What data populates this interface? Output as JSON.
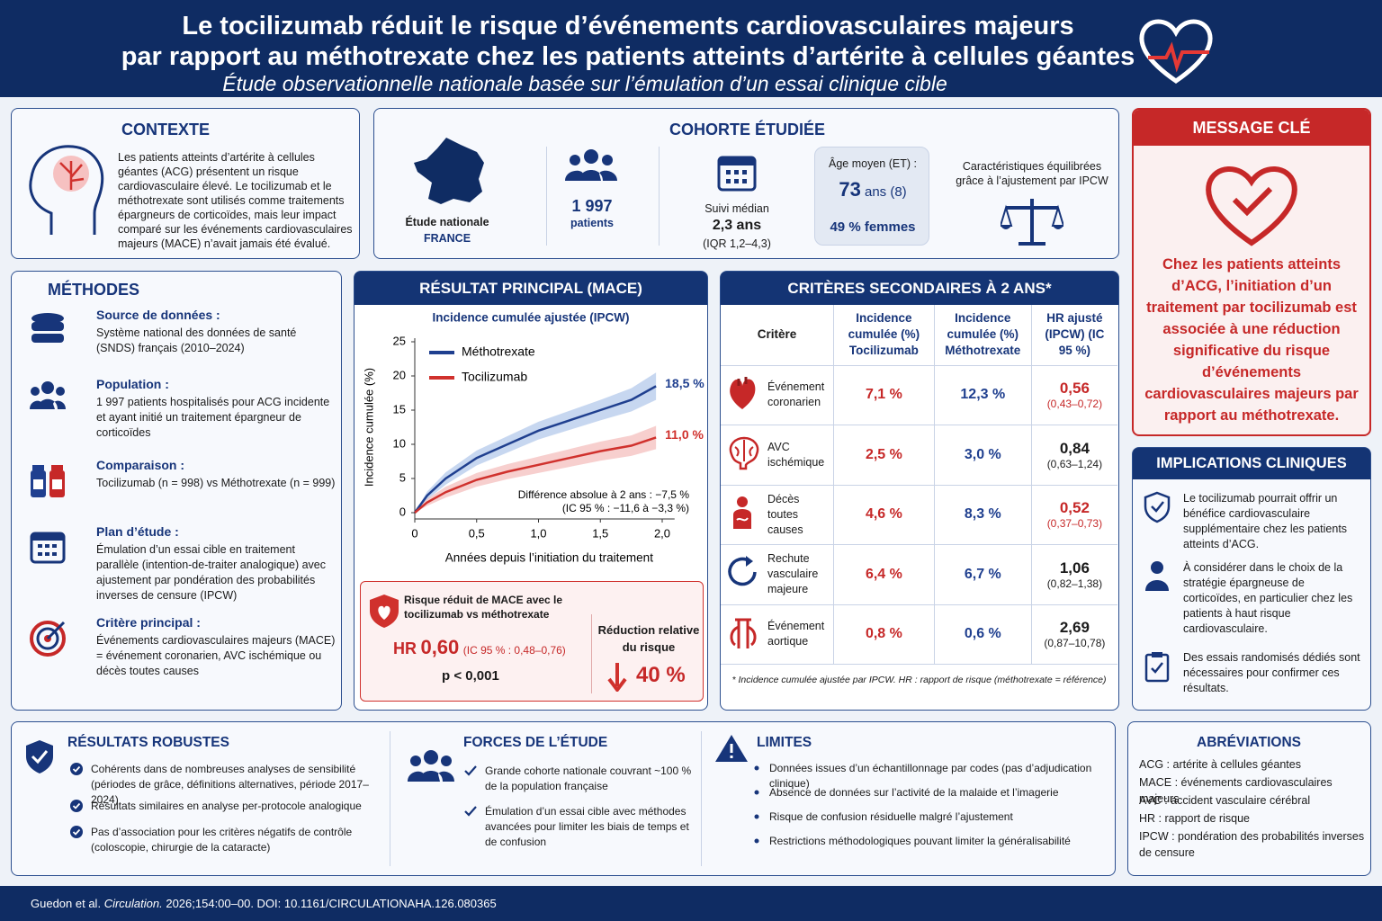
{
  "header": {
    "title_line1": "Le tocilizumab réduit le risque d’événements cardiovasculaires majeurs",
    "title_line2": "par rapport au méthotrexate chez les patients atteints d’artérite à cellules géantes",
    "subtitle": "Étude observationnelle nationale basée sur l’émulation d’un essai clinique cible"
  },
  "context": {
    "title": "CONTEXTE",
    "text": "Les patients atteints d’artérite à cellules géantes (ACG) présentent un risque cardiovasculaire élevé. Le tocilizumab et le méthotrexate sont utilisés comme traitements épargneurs de corticoïdes, mais leur impact comparé sur les événements cardiovasculaires majeurs (MACE) n’avait jamais été évalué."
  },
  "cohort": {
    "title": "COHORTE ÉTUDIÉE",
    "study": "Étude nationale",
    "country": "FRANCE",
    "n": "1 997",
    "n_label": "patients",
    "followup_label": "Suivi médian",
    "followup": "2,3 ans",
    "followup_iqr": "(IQR 1,2–4,3)",
    "age_label": "Âge moyen (ET) :",
    "age": "73",
    "age_unit": "ans (8)",
    "women": "49 % femmes",
    "balance": "Caractéristiques équilibrées grâce à l’ajustement par IPCW"
  },
  "key_message": {
    "title": "MESSAGE CLÉ",
    "text": "Chez les patients atteints d’ACG, l’initiation d’un traitement par tocilizumab est associée à une réduction significative du risque d’événements cardiovasculaires majeurs par rapport au méthotrexate."
  },
  "methods": {
    "title": "MÉTHODES",
    "items": [
      {
        "label": "Source de données :",
        "text": "Système national des données de santé (SNDS) français (2010–2024)"
      },
      {
        "label": "Population :",
        "text": "1 997 patients hospitalisés pour ACG incidente et ayant initié un traitement épargneur de corticoïdes"
      },
      {
        "label": "Comparaison :",
        "text": "Tocilizumab (n = 998) vs Méthotrexate (n = 999)"
      },
      {
        "label": "Plan d’étude :",
        "text": "Émulation d’un essai cible en traitement parallèle (intention-de-traiter analogique) avec ajustement par pondération des probabilités inverses de censure (IPCW)"
      },
      {
        "label": "Critère principal :",
        "text": "Événements cardiovasculaires majeurs (MACE) = événement coronarien, AVC ischémique ou décès toutes causes"
      }
    ]
  },
  "main_result": {
    "title": "RÉSULTAT PRINCIPAL (MACE)",
    "box_text": "Risque réduit de MACE avec le tocilizumab vs méthotrexate",
    "hr_label": "HR",
    "hr": "0,60",
    "ci": "(IC 95 % : 0,48–0,76)",
    "p": "p < 0,001",
    "rrr_label": "Réduction relative du risque",
    "rrr": "40 %"
  },
  "chart_data": {
    "type": "line",
    "title": "Incidence cumulée ajustée (IPCW)",
    "x_label": "Années depuis l’initiation du traitement",
    "y_label": "Incidence cumulée (%)",
    "x": [
      0,
      0.1,
      0.25,
      0.5,
      0.75,
      1.0,
      1.25,
      1.5,
      1.75,
      1.95
    ],
    "xlim": [
      0,
      2.1
    ],
    "ylim": [
      0,
      25
    ],
    "xticks": [
      0,
      {
        "value": 0.5,
        "label": "0,5"
      },
      {
        "value": 1,
        "label": "1,0"
      },
      {
        "value": 1.5,
        "label": "1,5"
      },
      {
        "value": 2,
        "label": "2,0"
      }
    ],
    "yticks": [
      0,
      5,
      10,
      15,
      20,
      25
    ],
    "legend": "upper left",
    "series": [
      {
        "name": "Méthotrexate",
        "color": "#1f3f8f",
        "band_color": "#a9c1e8",
        "values": [
          0,
          2.5,
          5,
          8,
          10,
          12,
          13.5,
          15,
          16.5,
          18.5
        ],
        "lower": [
          0,
          1.9,
          4.1,
          6.9,
          8.8,
          10.7,
          12.1,
          13.5,
          14.8,
          16.5
        ],
        "upper": [
          0,
          3.1,
          5.9,
          9.1,
          11.2,
          13.3,
          14.9,
          16.5,
          18.2,
          20.5
        ],
        "value_labels": [
          null,
          null,
          null,
          null,
          null,
          null,
          null,
          null,
          null,
          "18,5 %"
        ]
      },
      {
        "name": "Tocilizumab",
        "color": "#d0312d",
        "band_color": "#f3b6b4",
        "values": [
          0,
          1.5,
          3,
          4.8,
          6,
          7,
          8,
          9,
          9.8,
          11.0
        ],
        "lower": [
          0,
          1.0,
          2.2,
          3.8,
          4.9,
          5.8,
          6.7,
          7.6,
          8.3,
          9.3
        ],
        "upper": [
          0,
          2.0,
          3.8,
          5.8,
          7.1,
          8.2,
          9.3,
          10.4,
          11.3,
          12.7
        ],
        "value_labels": [
          null,
          null,
          null,
          null,
          null,
          null,
          null,
          null,
          null,
          "11,0 %"
        ]
      }
    ],
    "annotations": [
      "Différence absolue à 2 ans : −7,5 %",
      "(IC 95 % : −11,6 à −3,3 %)"
    ]
  },
  "secondary": {
    "title": "CRITÈRES SECONDAIRES À 2 ANS*",
    "headers": [
      "Critère",
      "Incidence cumulée (%) Tocilizumab",
      "Incidence cumulée (%) Méthotrexate",
      "HR ajusté (IPCW) (IC 95 %)"
    ],
    "rows": [
      {
        "name": "Événement coronarien",
        "toci": "7,1 %",
        "mtx": "12,3 %",
        "hr": "0,56",
        "ci": "(0,43–0,72)",
        "color": "#c62828"
      },
      {
        "name": "AVC ischémique",
        "toci": "2,5 %",
        "mtx": "3,0 %",
        "hr": "0,84",
        "ci": "(0,63–1,24)",
        "color": "#1a1a1a"
      },
      {
        "name": "Décès toutes causes",
        "toci": "4,6 %",
        "mtx": "8,3 %",
        "hr": "0,52",
        "ci": "(0,37–0,73)",
        "color": "#c62828"
      },
      {
        "name": "Rechute vasculaire majeure",
        "toci": "6,4 %",
        "mtx": "6,7 %",
        "hr": "1,06",
        "ci": "(0,82–1,38)",
        "color": "#1a1a1a"
      },
      {
        "name": "Événement aortique",
        "toci": "0,8 %",
        "mtx": "0,6 %",
        "hr": "2,69",
        "ci": "(0,87–10,78)",
        "color": "#1a1a1a"
      }
    ],
    "footnote": "* Incidence cumulée ajustée par IPCW. HR : rapport de risque (méthotrexate = référence)"
  },
  "implications": {
    "title": "IMPLICATIONS CLINIQUES",
    "items": [
      "Le tocilizumab pourrait offrir un bénéfice cardiovasculaire supplémentaire chez les patients atteints d’ACG.",
      "À considérer dans le choix de la stratégie épargneuse de corticoïdes, en particulier chez les patients à haut risque cardiovasculaire.",
      "Des essais randomisés dédiés sont nécessaires pour confirmer ces résultats."
    ]
  },
  "robust": {
    "title": "RÉSULTATS ROBUSTES",
    "items": [
      "Cohérents dans de nombreuses analyses de sensibilité (périodes de grâce, définitions alternatives, période 2017–2024)",
      "Résultats similaires en analyse per-protocole analogique",
      "Pas d’association pour les critères négatifs de contrôle (coloscopie, chirurgie de la cataracte)"
    ]
  },
  "strengths": {
    "title": "FORCES DE L’ÉTUDE",
    "items": [
      "Grande cohorte nationale couvrant ~100 % de la population française",
      "Émulation d’un essai cible avec méthodes avancées pour limiter les biais de temps et de confusion"
    ]
  },
  "limits": {
    "title": "LIMITES",
    "items": [
      "Données issues d’un échantillonnage par codes (pas d’adjudication clinique)",
      "Absence de données sur l’activité de la malaide et l’imagerie",
      "Risque de confusion résiduelle malgré l’ajustement",
      "Restrictions méthodologiques pouvant limiter la généralisabilité"
    ]
  },
  "abbreviations": {
    "title": "ABRÉVIATIONS",
    "items": [
      "ACG : artérite à cellules géantes",
      "MACE : événements cardiovasculaires majeurs",
      "AVC : accident vasculaire cérébral",
      "HR : rapport de risque",
      "IPCW : pondération des probabilités inverses de censure"
    ]
  },
  "footer": {
    "authors": "Guedon et al.",
    "journal": "Circulation.",
    "ref": "2026;154:00–00. DOI: 10.1161/CIRCULATIONAHA.126.080365"
  }
}
